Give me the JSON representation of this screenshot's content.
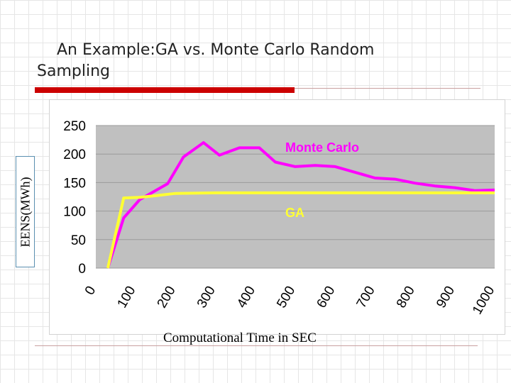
{
  "slide": {
    "title": "An Example:GA vs. Monte Carlo Random Sampling"
  },
  "chart_data": {
    "type": "line",
    "title": "",
    "xlabel": "Computational Time in SEC",
    "ylabel": "EENS(MWh)",
    "x_ticks": [
      "0",
      "100",
      "200",
      "300",
      "400",
      "500",
      "600",
      "700",
      "800",
      "900",
      "1000"
    ],
    "y_ticks": [
      "0",
      "50",
      "100",
      "150",
      "200",
      "250"
    ],
    "xlim": [
      0,
      1000
    ],
    "ylim": [
      0,
      250
    ],
    "grid": true,
    "plot_background": "#c0c0c0",
    "series": [
      {
        "name": "Monte Carlo",
        "color": "#ff00ff",
        "x": [
          30,
          70,
          110,
          180,
          220,
          270,
          310,
          360,
          410,
          450,
          500,
          550,
          600,
          650,
          700,
          750,
          800,
          850,
          900,
          950,
          1000
        ],
        "y": [
          0,
          88,
          120,
          148,
          195,
          220,
          198,
          211,
          211,
          186,
          178,
          180,
          178,
          168,
          158,
          156,
          149,
          144,
          141,
          136,
          137
        ]
      },
      {
        "name": "GA",
        "color": "#ffff33",
        "x": [
          30,
          70,
          110,
          150,
          200,
          300,
          500,
          700,
          900,
          1000
        ],
        "y": [
          0,
          123,
          124,
          127,
          131,
          132,
          132,
          132,
          132,
          132
        ]
      }
    ]
  }
}
